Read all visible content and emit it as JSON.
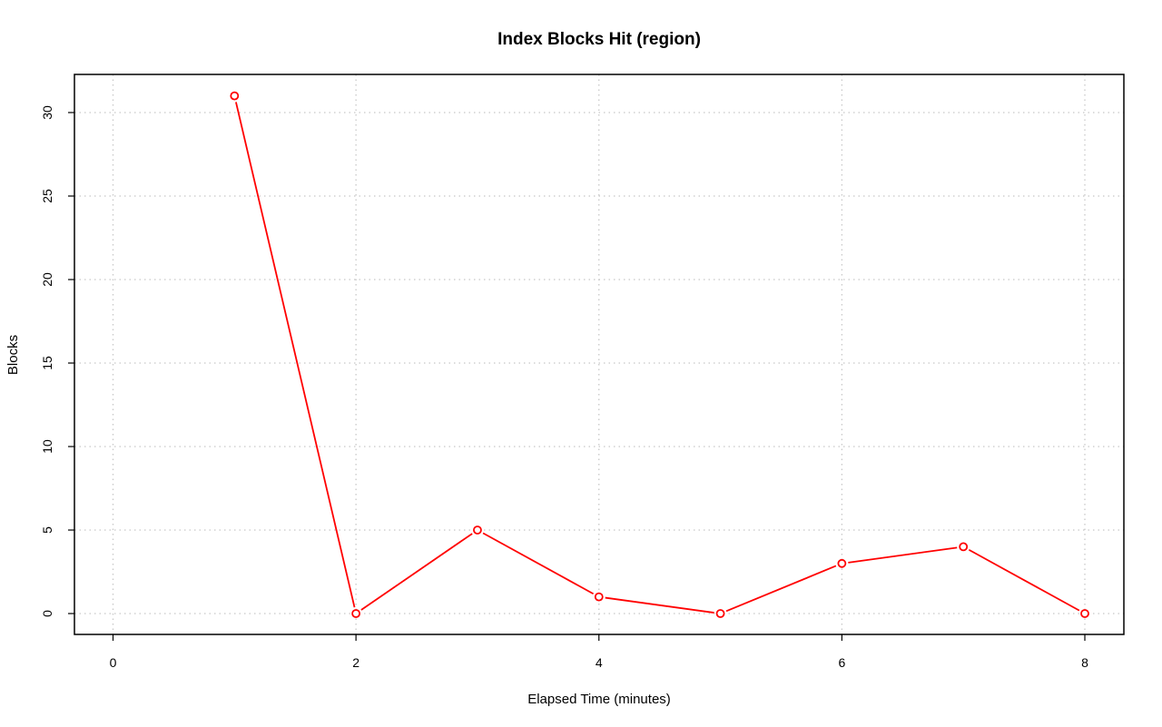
{
  "chart_data": {
    "type": "line",
    "title": "Index Blocks Hit (region)",
    "xlabel": "Elapsed Time (minutes)",
    "ylabel": "Blocks",
    "x": [
      1,
      2,
      3,
      4,
      5,
      6,
      7,
      8
    ],
    "series": [
      {
        "values": [
          31,
          0,
          5,
          1,
          0,
          3,
          4,
          0
        ],
        "color": "#ff0000"
      }
    ],
    "xlim": [
      0,
      8
    ],
    "ylim": [
      0,
      30
    ],
    "x_ticks": [
      "0",
      "2",
      "4",
      "6",
      "8"
    ],
    "y_ticks": [
      "0",
      "5",
      "10",
      "15",
      "20",
      "25",
      "30"
    ],
    "grid": true,
    "grid_style": "dotted",
    "marker": "open-circle",
    "legend": false
  }
}
